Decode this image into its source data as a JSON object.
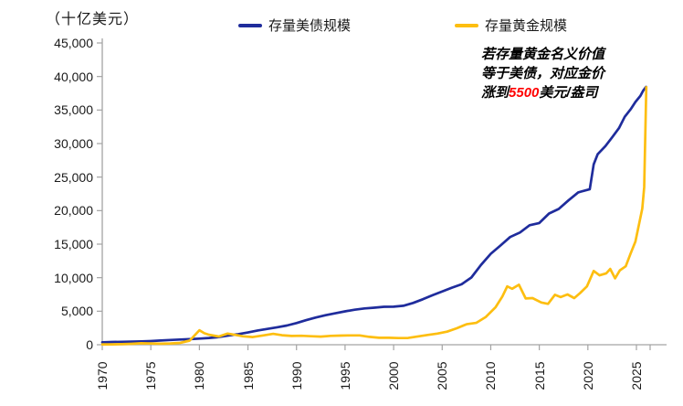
{
  "unit_label": "（十亿美元）",
  "annotation": {
    "line1": "若存量黄金名义价值",
    "line2": "等于美债，对应金价",
    "line3_pre": "涨到",
    "line3_value": "5500",
    "line3_post": "美元/盎司",
    "highlight_color": "#FF0000"
  },
  "colors": {
    "axis": "#A3A3A3",
    "text": "#1A1A1A",
    "us_debt_line": "#1F2C9C",
    "gold_line": "#FDBE10"
  },
  "chart_data": {
    "type": "line",
    "title": "",
    "ylabel": "（十亿美元）",
    "xlabel": "",
    "grid": false,
    "legend_position": "top",
    "x_axis": {
      "min": 1970,
      "max": 2026.3,
      "ticks": [
        1970,
        1975,
        1980,
        1985,
        1990,
        1995,
        2000,
        2005,
        2010,
        2015,
        2020,
        2025
      ],
      "tick_labels": [
        "1970",
        "1975",
        "1980",
        "1985",
        "1990",
        "1995",
        "2000",
        "2005",
        "2010",
        "2015",
        "2020",
        "2025"
      ]
    },
    "y_axis": {
      "min": 0,
      "max": 45000,
      "ticks": [
        0,
        5000,
        10000,
        15000,
        20000,
        25000,
        30000,
        35000,
        40000,
        45000
      ],
      "tick_labels": [
        "0",
        "5,000",
        "10,000",
        "15,000",
        "20,000",
        "25,000",
        "30,000",
        "35,000",
        "40,000",
        "45,000"
      ]
    },
    "series": [
      {
        "name": "存量美债规模",
        "color": "#1F2C9C",
        "points": [
          [
            1970,
            370
          ],
          [
            1971,
            408
          ],
          [
            1972,
            437
          ],
          [
            1973,
            468
          ],
          [
            1974,
            486
          ],
          [
            1975,
            544
          ],
          [
            1976,
            632
          ],
          [
            1977,
            709
          ],
          [
            1978,
            780
          ],
          [
            1979,
            834
          ],
          [
            1980,
            914
          ],
          [
            1981,
            1004
          ],
          [
            1982,
            1147
          ],
          [
            1983,
            1382
          ],
          [
            1984,
            1577
          ],
          [
            1985,
            1827
          ],
          [
            1986,
            2130
          ],
          [
            1987,
            2355
          ],
          [
            1988,
            2607
          ],
          [
            1989,
            2868
          ],
          [
            1990,
            3233
          ],
          [
            1991,
            3665
          ],
          [
            1992,
            4065
          ],
          [
            1993,
            4411
          ],
          [
            1994,
            4693
          ],
          [
            1995,
            4974
          ],
          [
            1996,
            5225
          ],
          [
            1997,
            5413
          ],
          [
            1998,
            5526
          ],
          [
            1999,
            5656
          ],
          [
            2000,
            5674
          ],
          [
            2001,
            5807
          ],
          [
            2002,
            6228
          ],
          [
            2003,
            6783
          ],
          [
            2004,
            7379
          ],
          [
            2005,
            7933
          ],
          [
            2006,
            8507
          ],
          [
            2007,
            9008
          ],
          [
            2008,
            10025
          ],
          [
            2009,
            11910
          ],
          [
            2010,
            13562
          ],
          [
            2011,
            14790
          ],
          [
            2012,
            16066
          ],
          [
            2013,
            16738
          ],
          [
            2014,
            17824
          ],
          [
            2015,
            18151
          ],
          [
            2016,
            19573
          ],
          [
            2017,
            20245
          ],
          [
            2018,
            21516
          ],
          [
            2019,
            22719
          ],
          [
            2020.2,
            23200
          ],
          [
            2020.6,
            26900
          ],
          [
            2021,
            28400
          ],
          [
            2021.8,
            29617
          ],
          [
            2022.5,
            30930
          ],
          [
            2023.2,
            32300
          ],
          [
            2023.8,
            34000
          ],
          [
            2024.4,
            35100
          ],
          [
            2024.9,
            36200
          ],
          [
            2025.4,
            37100
          ],
          [
            2025.7,
            37900
          ],
          [
            2026,
            38450
          ]
        ]
      },
      {
        "name": "存量黄金规模",
        "color": "#FDBE10",
        "points": [
          [
            1970,
            48
          ],
          [
            1971,
            55
          ],
          [
            1972,
            78
          ],
          [
            1973,
            135
          ],
          [
            1974,
            215
          ],
          [
            1975,
            185
          ],
          [
            1976,
            148
          ],
          [
            1977,
            192
          ],
          [
            1978,
            272
          ],
          [
            1979,
            610
          ],
          [
            1980,
            2150
          ],
          [
            1980.5,
            1720
          ],
          [
            1981,
            1480
          ],
          [
            1982,
            1230
          ],
          [
            1982.9,
            1660
          ],
          [
            1983.6,
            1480
          ],
          [
            1984.5,
            1260
          ],
          [
            1985.5,
            1150
          ],
          [
            1986.5,
            1380
          ],
          [
            1987.6,
            1620
          ],
          [
            1988.5,
            1420
          ],
          [
            1989.5,
            1310
          ],
          [
            1990.5,
            1340
          ],
          [
            1991.5,
            1270
          ],
          [
            1992.5,
            1210
          ],
          [
            1993.5,
            1320
          ],
          [
            1994.5,
            1365
          ],
          [
            1995.5,
            1385
          ],
          [
            1996.5,
            1395
          ],
          [
            1997.5,
            1170
          ],
          [
            1998.5,
            1040
          ],
          [
            1999.5,
            1030
          ],
          [
            2000.5,
            990
          ],
          [
            2001.5,
            1010
          ],
          [
            2002.5,
            1240
          ],
          [
            2003.5,
            1460
          ],
          [
            2004.5,
            1660
          ],
          [
            2005.5,
            1950
          ],
          [
            2006.5,
            2460
          ],
          [
            2007.5,
            3050
          ],
          [
            2008.5,
            3260
          ],
          [
            2009.5,
            4150
          ],
          [
            2010.5,
            5600
          ],
          [
            2011.2,
            7200
          ],
          [
            2011.7,
            8700
          ],
          [
            2012.2,
            8350
          ],
          [
            2012.9,
            8950
          ],
          [
            2013.6,
            6900
          ],
          [
            2014.3,
            6950
          ],
          [
            2015.2,
            6300
          ],
          [
            2015.9,
            6100
          ],
          [
            2016.6,
            7450
          ],
          [
            2017.2,
            7100
          ],
          [
            2017.9,
            7500
          ],
          [
            2018.6,
            6950
          ],
          [
            2019.2,
            7700
          ],
          [
            2019.9,
            8700
          ],
          [
            2020.6,
            11000
          ],
          [
            2021.2,
            10350
          ],
          [
            2021.9,
            10650
          ],
          [
            2022.3,
            11300
          ],
          [
            2022.8,
            9900
          ],
          [
            2023.3,
            11100
          ],
          [
            2023.9,
            11700
          ],
          [
            2024.4,
            13600
          ],
          [
            2024.9,
            15400
          ],
          [
            2025.3,
            18200
          ],
          [
            2025.6,
            20300
          ],
          [
            2025.8,
            23500
          ],
          [
            2026.02,
            38400
          ]
        ]
      }
    ]
  }
}
